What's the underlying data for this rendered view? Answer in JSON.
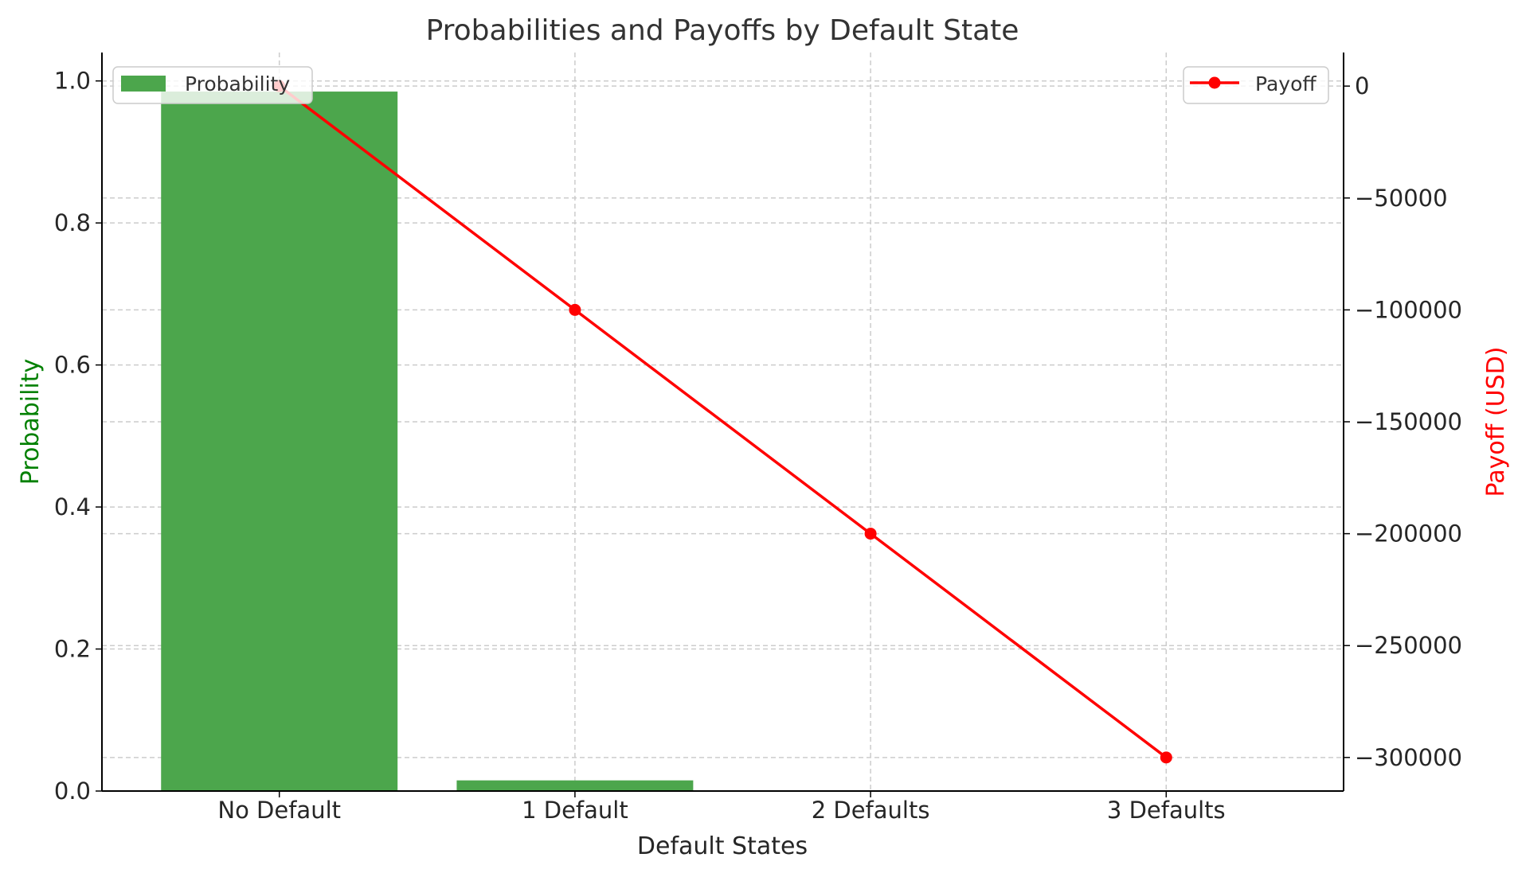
{
  "chart_data": {
    "type": "bar+line",
    "title": "Probabilities and Payoffs by Default State",
    "xlabel": "Default States",
    "categories": [
      "No Default",
      "1 Default",
      "2 Defaults",
      "3 Defaults"
    ],
    "series": [
      {
        "name": "Probability",
        "type": "bar",
        "axis": "left",
        "color": "#4ca64c",
        "values": [
          0.985,
          0.015,
          0.0,
          0.0
        ]
      },
      {
        "name": "Payoff",
        "type": "line",
        "axis": "right",
        "color": "#ff0000",
        "values": [
          0,
          -100000,
          -200000,
          -300000
        ]
      }
    ],
    "left_axis": {
      "label": "Probability",
      "label_color": "#008000",
      "range": [
        0,
        1.04
      ],
      "ticks": [
        0.0,
        0.2,
        0.4,
        0.6,
        0.8,
        1.0
      ],
      "tick_labels": [
        "0.0",
        "0.2",
        "0.4",
        "0.6",
        "0.8",
        "1.0"
      ]
    },
    "right_axis": {
      "label": "Payoff (USD)",
      "label_color": "#ff0000",
      "range": [
        -315000,
        15000
      ],
      "ticks": [
        0,
        -50000,
        -100000,
        -150000,
        -200000,
        -250000,
        -300000
      ],
      "tick_labels": [
        "0",
        "−50000",
        "−100000",
        "−150000",
        "−200000",
        "−250000",
        "−300000"
      ]
    },
    "grid": true,
    "legends": [
      {
        "entry": "Probability",
        "placement": "top-left"
      },
      {
        "entry": "Payoff",
        "placement": "top-right"
      }
    ]
  }
}
